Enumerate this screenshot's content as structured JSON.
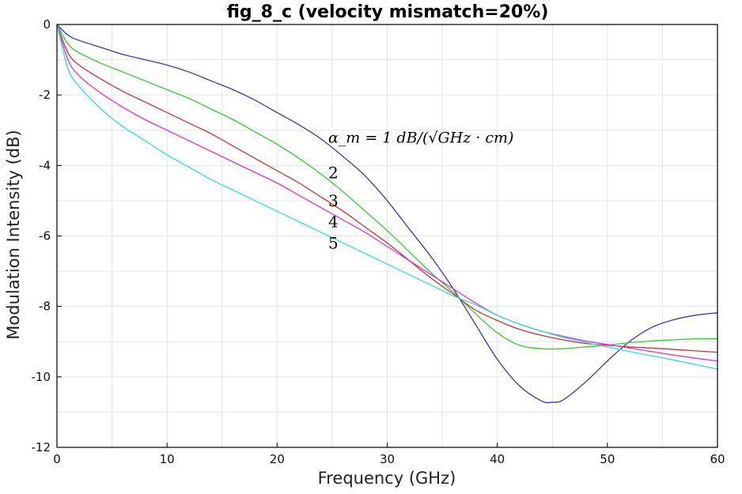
{
  "chart_data": {
    "type": "line",
    "title": "fig_8_c (velocity mismatch=20%)",
    "xlabel": "Frequency (GHz)",
    "ylabel": "Modulation Intensity (dB)",
    "xlim": [
      0,
      60
    ],
    "ylim": [
      -12,
      0
    ],
    "xticks": [
      0,
      10,
      20,
      30,
      40,
      50,
      60
    ],
    "xtick_labels": [
      "0",
      "10",
      "20",
      "30",
      "40",
      "50",
      "60"
    ],
    "yticks": [
      0,
      -2,
      -4,
      -6,
      -8,
      -10,
      -12
    ],
    "ytick_labels": [
      "0",
      "-2",
      "-4",
      "-6",
      "-8",
      "-10",
      "-12"
    ],
    "grid": true,
    "annotations": [
      {
        "text": "α_m = 1 dB/(√GHz · cm)",
        "series": "1",
        "x": 24.5,
        "y": -3.2
      },
      {
        "text": "2",
        "series": "2",
        "x": 24.5,
        "y": -4.2
      },
      {
        "text": "3",
        "series": "3",
        "x": 24.5,
        "y": -5.0
      },
      {
        "text": "4",
        "series": "4",
        "x": 24.5,
        "y": -5.6
      },
      {
        "text": "5",
        "series": "5",
        "x": 24.5,
        "y": -6.2
      }
    ],
    "series": [
      {
        "name": "1",
        "color": "#3a3aa8",
        "x": [
          0,
          1,
          2,
          4,
          6,
          8,
          10,
          12,
          14,
          16,
          18,
          20,
          22,
          24,
          26,
          28,
          30,
          32,
          34,
          36,
          38,
          40,
          42,
          44,
          45,
          46,
          48,
          50,
          52,
          54,
          56,
          58,
          60
        ],
        "y": [
          0,
          -0.3,
          -0.45,
          -0.65,
          -0.85,
          -1.0,
          -1.15,
          -1.35,
          -1.6,
          -1.85,
          -2.15,
          -2.5,
          -2.85,
          -3.25,
          -3.75,
          -4.3,
          -5.0,
          -5.8,
          -6.6,
          -7.5,
          -8.5,
          -9.5,
          -10.25,
          -10.68,
          -10.72,
          -10.65,
          -10.15,
          -9.55,
          -9.0,
          -8.6,
          -8.38,
          -8.25,
          -8.18
        ]
      },
      {
        "name": "2",
        "color": "#33cc33",
        "x": [
          0,
          1,
          2,
          4,
          6,
          8,
          10,
          12,
          14,
          16,
          18,
          20,
          22,
          24,
          26,
          28,
          30,
          32,
          34,
          36,
          38,
          40,
          42,
          44,
          46,
          48,
          50,
          52,
          54,
          56,
          58,
          60
        ],
        "y": [
          0,
          -0.55,
          -0.8,
          -1.1,
          -1.35,
          -1.6,
          -1.85,
          -2.1,
          -2.4,
          -2.7,
          -3.05,
          -3.4,
          -3.8,
          -4.25,
          -4.75,
          -5.3,
          -5.85,
          -6.45,
          -7.05,
          -7.6,
          -8.2,
          -8.75,
          -9.1,
          -9.2,
          -9.2,
          -9.15,
          -9.1,
          -9.03,
          -8.98,
          -8.95,
          -8.92,
          -8.92
        ]
      },
      {
        "name": "3",
        "color": "#cc3333",
        "x": [
          0,
          1,
          2,
          4,
          6,
          8,
          10,
          12,
          14,
          16,
          18,
          20,
          22,
          24,
          26,
          28,
          30,
          32,
          34,
          36,
          38,
          40,
          42,
          44,
          46,
          48,
          50,
          52,
          54,
          56,
          58,
          60
        ],
        "y": [
          0,
          -0.8,
          -1.15,
          -1.55,
          -1.9,
          -2.2,
          -2.5,
          -2.8,
          -3.1,
          -3.45,
          -3.8,
          -4.15,
          -4.5,
          -4.9,
          -5.3,
          -5.75,
          -6.2,
          -6.7,
          -7.2,
          -7.65,
          -8.1,
          -8.4,
          -8.65,
          -8.82,
          -8.95,
          -9.05,
          -9.1,
          -9.15,
          -9.18,
          -9.22,
          -9.26,
          -9.3
        ]
      },
      {
        "name": "4",
        "color": "#dd33dd",
        "x": [
          0,
          1,
          2,
          4,
          6,
          8,
          10,
          12,
          14,
          16,
          18,
          20,
          22,
          24,
          26,
          28,
          30,
          32,
          34,
          36,
          38,
          40,
          42,
          44,
          46,
          48,
          50,
          52,
          54,
          56,
          58,
          60
        ],
        "y": [
          0,
          -1.0,
          -1.45,
          -1.95,
          -2.35,
          -2.7,
          -3.0,
          -3.3,
          -3.6,
          -3.9,
          -4.2,
          -4.5,
          -4.85,
          -5.2,
          -5.55,
          -5.9,
          -6.3,
          -6.7,
          -7.1,
          -7.5,
          -7.9,
          -8.25,
          -8.5,
          -8.7,
          -8.85,
          -8.98,
          -9.08,
          -9.18,
          -9.28,
          -9.38,
          -9.47,
          -9.55
        ]
      },
      {
        "name": "5",
        "color": "#33dddd",
        "x": [
          0,
          1,
          2,
          4,
          6,
          8,
          10,
          12,
          14,
          16,
          18,
          20,
          22,
          24,
          26,
          28,
          30,
          32,
          34,
          36,
          38,
          40,
          42,
          44,
          46,
          48,
          50,
          52,
          54,
          56,
          58,
          60
        ],
        "y": [
          0,
          -1.25,
          -1.75,
          -2.4,
          -2.9,
          -3.3,
          -3.7,
          -4.05,
          -4.4,
          -4.7,
          -5.0,
          -5.3,
          -5.6,
          -5.9,
          -6.2,
          -6.5,
          -6.8,
          -7.1,
          -7.4,
          -7.7,
          -7.95,
          -8.25,
          -8.5,
          -8.7,
          -8.88,
          -9.02,
          -9.15,
          -9.28,
          -9.4,
          -9.52,
          -9.65,
          -9.78
        ]
      }
    ]
  }
}
